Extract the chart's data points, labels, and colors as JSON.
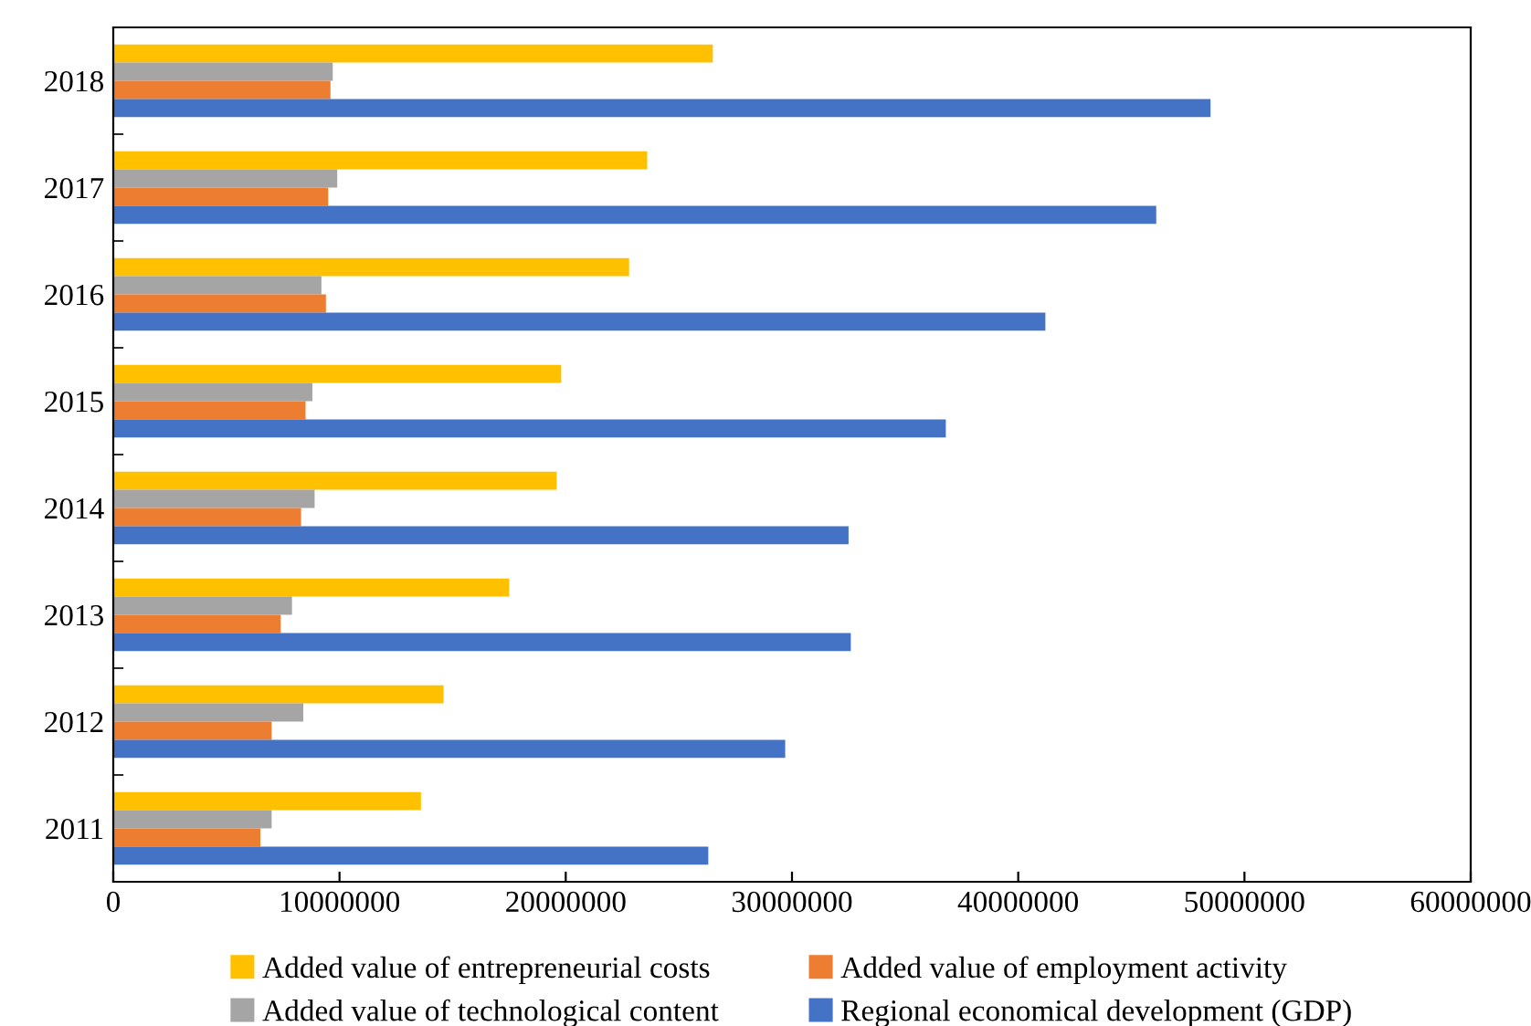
{
  "chart_data": {
    "type": "bar",
    "orientation": "horizontal",
    "categories": [
      "2018",
      "2017",
      "2016",
      "2015",
      "2014",
      "2013",
      "2012",
      "2011"
    ],
    "series": [
      {
        "name": "Added value of entrepreneurial costs",
        "color": "#ffc000",
        "values": [
          26500000,
          23600000,
          22800000,
          19800000,
          19600000,
          17500000,
          14600000,
          13600000
        ]
      },
      {
        "name": "Added value of technological content",
        "color": "#a5a5a5",
        "values": [
          9700000,
          9900000,
          9200000,
          8800000,
          8900000,
          7900000,
          8400000,
          7000000
        ]
      },
      {
        "name": "Added value of employment activity",
        "color": "#ed7d31",
        "values": [
          9600000,
          9500000,
          9400000,
          8500000,
          8300000,
          7400000,
          7000000,
          6500000
        ]
      },
      {
        "name": "Regional economical development (GDP)",
        "color": "#4472c4",
        "values": [
          48500000,
          46100000,
          41200000,
          36800000,
          32500000,
          32600000,
          29700000,
          26300000
        ]
      }
    ],
    "xlim": [
      0,
      60000000
    ],
    "xticks": [
      0,
      10000000,
      20000000,
      30000000,
      40000000,
      50000000,
      60000000
    ],
    "grid": false,
    "legend": "bottom"
  }
}
